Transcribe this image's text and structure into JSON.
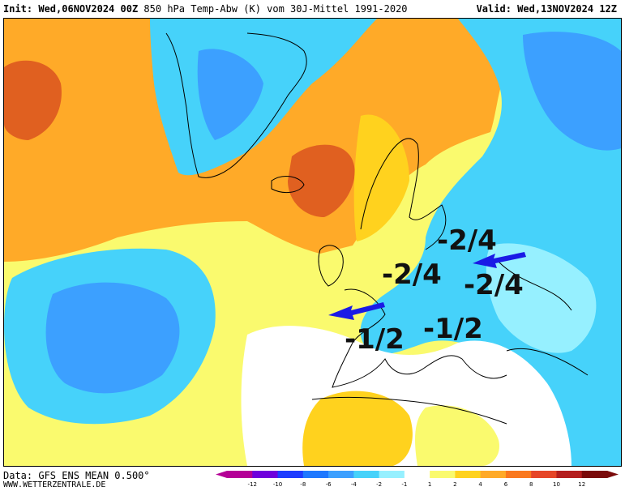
{
  "header": {
    "init_label": "Init:",
    "init_value": "Wed,06NOV2024 00Z",
    "parameter": "850 hPa Temp-Abw (K) vom 30J-Mittel 1991-2020",
    "valid_label": "Valid:",
    "valid_value": "Wed,13NOV2024 12Z"
  },
  "footer": {
    "data_source": "Data: GFS ENS MEAN 0.500°",
    "website": "WWW.WETTERZENTRALE.DE"
  },
  "legend": {
    "ticks": [
      "-12",
      "-10",
      "-8",
      "-6",
      "-4",
      "-2",
      "-1",
      "1",
      "2",
      "4",
      "6",
      "8",
      "10",
      "12"
    ],
    "colors": [
      "#b40096",
      "#6e00dc",
      "#1e3cff",
      "#1e78ff",
      "#3ca0ff",
      "#46d2fa",
      "#96f0ff",
      "#ffffff",
      "#fafa6e",
      "#ffd21e",
      "#ffaa28",
      "#fa781e",
      "#e64628",
      "#b41e1e",
      "#7a0a0a"
    ],
    "unit": "K"
  },
  "annotations": {
    "labels": [
      {
        "text": "-2/4",
        "name": "anomaly-label-central-europe-north"
      },
      {
        "text": "-2/4",
        "name": "anomaly-label-france"
      },
      {
        "text": "-2/4",
        "name": "anomaly-label-balkans-north"
      },
      {
        "text": "-1/2",
        "name": "anomaly-label-iberia"
      },
      {
        "text": "-1/2",
        "name": "anomaly-label-italy"
      }
    ],
    "arrow_color": "#1a1ae6"
  },
  "colors": {
    "anomaly_warm_strong": "#e06020",
    "anomaly_warm": "#ffaa28",
    "anomaly_mild": "#ffd21e",
    "anomaly_slight": "#fafa6e",
    "anomaly_cold_slight": "#96f0ff",
    "anomaly_cold": "#46d2fa",
    "anomaly_cold_strong": "#3ca0ff"
  }
}
